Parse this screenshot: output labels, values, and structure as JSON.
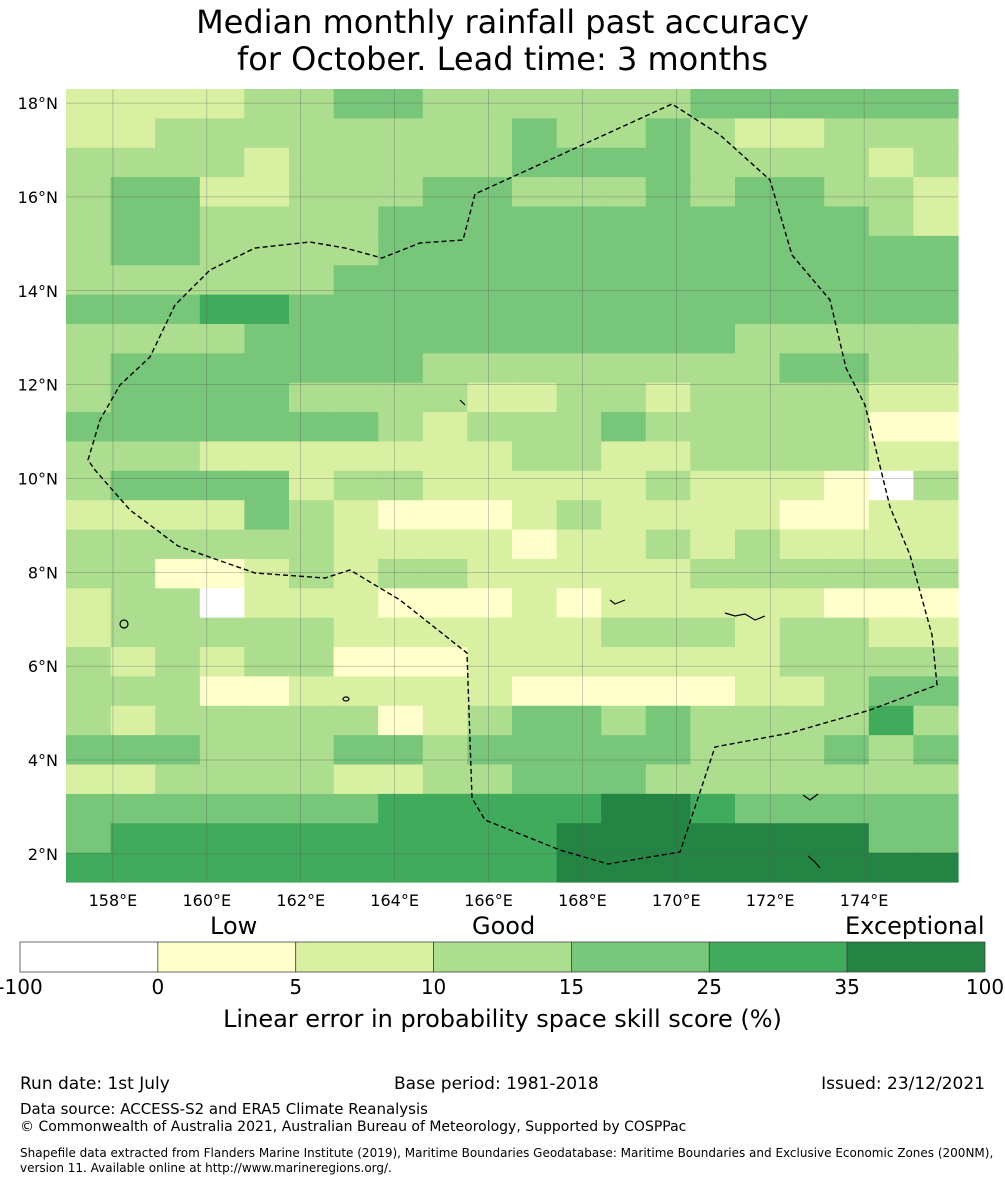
{
  "title_line1": "Median monthly rainfall past accuracy",
  "title_line2": "for October. Lead time: 3 months",
  "map": {
    "lon_labels": [
      "158°E",
      "160°E",
      "162°E",
      "164°E",
      "166°E",
      "168°E",
      "170°E",
      "172°E",
      "174°E"
    ],
    "lat_labels": [
      "18°N",
      "16°N",
      "14°N",
      "12°N",
      "10°N",
      "8°N",
      "6°N",
      "4°N",
      "2°N"
    ],
    "lon_values": [
      158,
      160,
      162,
      164,
      166,
      168,
      170,
      172,
      174
    ],
    "lat_values": [
      18,
      16,
      14,
      12,
      10,
      8,
      6,
      4,
      2
    ],
    "lon_range": [
      157.0,
      176.0
    ],
    "lat_range": [
      1.4,
      18.3
    ],
    "grid_lines": true,
    "boundary": "dashed",
    "palette": [
      "#ffffff",
      "#ffffcc",
      "#d9f0a3",
      "#addd8e",
      "#78c679",
      "#41ab5d",
      "#238443"
    ],
    "rows_top_to_bottom": [
      "22223344333333444444",
      "22333333334334322333",
      "33332333334444333323",
      "34422333443334344332",
      "34433334444444444432",
      "34433334444444444444",
      "33333344444444444444",
      "44455444444444444444",
      "33334444444444433333",
      "34444444333333334433",
      "34444333322332333322",
      "44444443233343333311",
      "33322222223322333322",
      "34444233222223222103",
      "22224321112322221122",
      "33333322221223232222",
      "33112323322222333333",
      "23302221112122222111",
      "23333322222233323322",
      "32323311122222223333",
      "33311222221111122344",
      "32333331234434333353",
      "44433344344444333434",
      "22333322334443333333",
      "44444445555566544444",
      "45555555555666666644",
      "55555555555666666666"
    ]
  },
  "legend": {
    "categories": [
      "Low",
      "Good",
      "Exceptional"
    ],
    "ticks": [
      "-100",
      "0",
      "5",
      "10",
      "15",
      "25",
      "35",
      "100"
    ],
    "title": "Linear error in probability space skill score (%)"
  },
  "footer": {
    "run_date": "Run date: 1st July",
    "base_period": "Base period: 1981-2018",
    "issued": "Issued: 23/12/2021",
    "data_source": "Data source: ACCESS-S2 and ERA5 Climate Reanalysis",
    "copyright": "© Commonwealth of Australia 2021, Australian Bureau of Meteorology, Supported by COSPPac",
    "shapefile_1": "Shapefile data extracted from Flanders Marine Institute (2019), Maritime Boundaries Geodatabase: Maritime Boundaries and Exclusive Economic Zones (200NM),",
    "shapefile_2": "version 11. Available online at http://www.marineregions.org/."
  }
}
